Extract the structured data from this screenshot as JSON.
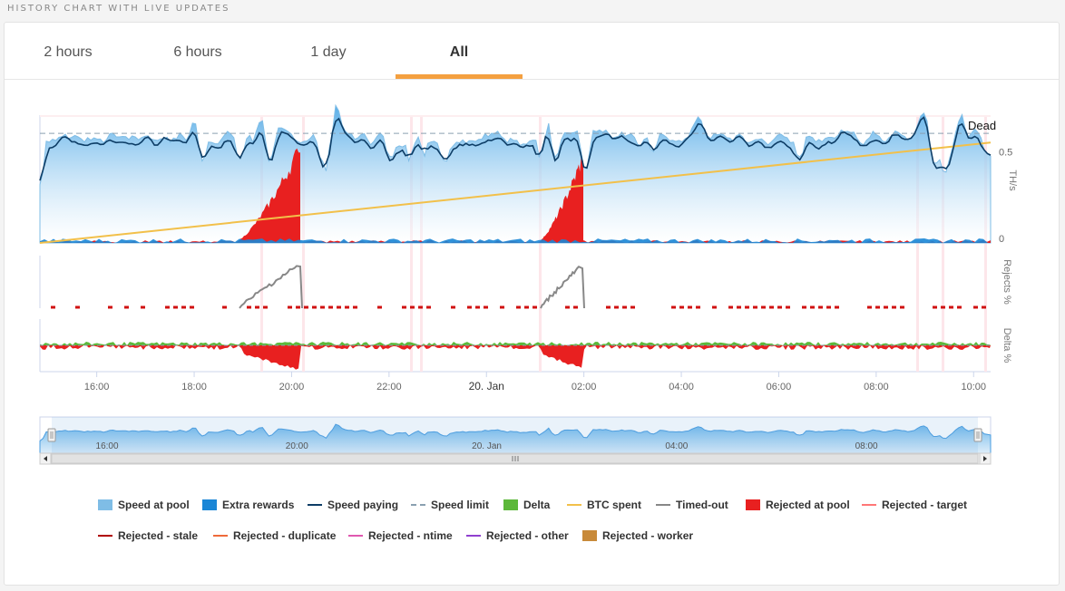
{
  "section_title": "HISTORY CHART WITH LIVE UPDATES",
  "tabs": [
    {
      "label": "2 hours",
      "active": false
    },
    {
      "label": "6 hours",
      "active": false
    },
    {
      "label": "1 day",
      "active": false
    },
    {
      "label": "All",
      "active": true
    }
  ],
  "chart_data": {
    "type": "area",
    "x_range": [
      "14:50",
      "10:20"
    ],
    "x_ticks": [
      "16:00",
      "18:00",
      "20:00",
      "22:00",
      "20. Jan",
      "02:00",
      "04:00",
      "06:00",
      "08:00",
      "10:00"
    ],
    "y_axis_main": {
      "label": "TH/s",
      "ticks": [
        "0",
        "0.5"
      ],
      "range": [
        0,
        0.7
      ]
    },
    "y_axis_rejects": {
      "label": "Rejects %"
    },
    "y_axis_delta": {
      "label": "Delta %"
    },
    "annotation": "Dead",
    "navigator_ticks": [
      "16:00",
      "20:00",
      "20. Jan",
      "04:00",
      "08:00"
    ],
    "series": [
      {
        "name": "Speed at pool",
        "color": "#7fbde6",
        "symbol": "box"
      },
      {
        "name": "Extra rewards",
        "color": "#1a86d6",
        "symbol": "box"
      },
      {
        "name": "Speed paying",
        "color": "#0d3d66",
        "symbol": "line"
      },
      {
        "name": "Speed limit",
        "color": "#8aa0b0",
        "symbol": "dash"
      },
      {
        "name": "Delta",
        "color": "#5cb83a",
        "symbol": "box"
      },
      {
        "name": "BTC spent",
        "color": "#f2c04a",
        "symbol": "line"
      },
      {
        "name": "Timed-out",
        "color": "#888888",
        "symbol": "line"
      },
      {
        "name": "Rejected at pool",
        "color": "#e82020",
        "symbol": "box"
      },
      {
        "name": "Rejected - target",
        "color": "#ff7777",
        "symbol": "line"
      },
      {
        "name": "Rejected - stale",
        "color": "#b00000",
        "symbol": "line"
      },
      {
        "name": "Rejected - duplicate",
        "color": "#ef6a3a",
        "symbol": "line"
      },
      {
        "name": "Rejected - ntime",
        "color": "#e058b0",
        "symbol": "line"
      },
      {
        "name": "Rejected - other",
        "color": "#9040d0",
        "symbol": "line"
      },
      {
        "name": "Rejected - worker",
        "color": "#c88a3a",
        "symbol": "box"
      }
    ],
    "speed_at_pool_approx": {
      "typical": 0.6,
      "min": 0.0,
      "max": 0.8
    },
    "btc_spent_approx": {
      "start": 0.0,
      "end": 0.55
    },
    "rejected_peaks_approx_th_s": [
      {
        "time": "20:00",
        "value": 0.55
      },
      {
        "time": "01:50",
        "value": 0.5
      }
    ],
    "timed_out_peaks_approx": [
      {
        "time": "20:00",
        "relative": 0.9
      },
      {
        "time": "01:50",
        "relative": 0.8
      }
    ]
  }
}
